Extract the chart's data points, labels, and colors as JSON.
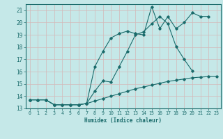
{
  "xlabel": "Humidex (Indice chaleur)",
  "xlim": [
    -0.5,
    23.5
  ],
  "ylim": [
    13,
    21.5
  ],
  "yticks": [
    13,
    14,
    15,
    16,
    17,
    18,
    19,
    20,
    21
  ],
  "xticks": [
    0,
    1,
    2,
    3,
    4,
    5,
    6,
    7,
    8,
    9,
    10,
    11,
    12,
    13,
    14,
    15,
    16,
    17,
    18,
    19,
    20,
    21,
    22,
    23
  ],
  "bg_color": "#c5e8e8",
  "line_color": "#1a6b6b",
  "grid_color": "#b8d8d8",
  "line1_x": [
    0,
    1,
    2,
    3,
    4,
    5,
    6,
    7,
    8,
    9,
    10,
    11,
    12,
    13,
    14,
    15,
    16,
    17,
    18,
    19,
    20,
    21,
    22
  ],
  "line1_y": [
    13.7,
    13.7,
    13.7,
    13.3,
    13.3,
    13.3,
    13.3,
    13.4,
    16.4,
    17.65,
    18.75,
    19.1,
    19.3,
    19.1,
    19.0,
    21.3,
    19.5,
    20.5,
    19.5,
    20.0,
    20.8,
    20.5,
    20.5
  ],
  "line2_x": [
    0,
    1,
    2,
    3,
    4,
    5,
    6,
    7,
    8,
    9,
    10,
    11,
    12,
    13,
    14,
    15,
    16,
    17,
    18,
    19,
    20,
    21,
    22,
    23
  ],
  "line2_y": [
    13.7,
    13.7,
    13.7,
    13.3,
    13.3,
    13.3,
    13.3,
    13.4,
    14.4,
    15.25,
    15.15,
    16.4,
    17.65,
    19.0,
    19.25,
    19.9,
    20.5,
    19.9,
    18.05,
    17.0,
    16.05,
    null,
    null,
    null
  ],
  "line3_x": [
    0,
    1,
    2,
    3,
    4,
    5,
    6,
    7,
    8,
    9,
    10,
    11,
    12,
    13,
    14,
    15,
    16,
    17,
    18,
    19,
    20,
    21,
    22,
    23
  ],
  "line3_y": [
    13.7,
    13.7,
    13.7,
    13.3,
    13.3,
    13.3,
    13.3,
    13.4,
    13.6,
    13.8,
    14.0,
    14.2,
    14.4,
    14.6,
    14.75,
    14.9,
    15.05,
    15.2,
    15.3,
    15.4,
    15.5,
    15.55,
    15.6,
    15.6
  ]
}
